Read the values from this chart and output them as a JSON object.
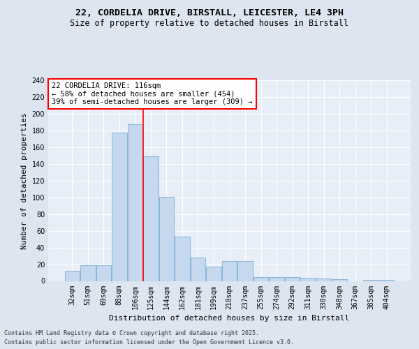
{
  "title_line1": "22, CORDELIA DRIVE, BIRSTALL, LEICESTER, LE4 3PH",
  "title_line2": "Size of property relative to detached houses in Birstall",
  "xlabel": "Distribution of detached houses by size in Birstall",
  "ylabel": "Number of detached properties",
  "categories": [
    "32sqm",
    "51sqm",
    "69sqm",
    "88sqm",
    "106sqm",
    "125sqm",
    "144sqm",
    "162sqm",
    "181sqm",
    "199sqm",
    "218sqm",
    "237sqm",
    "255sqm",
    "274sqm",
    "292sqm",
    "311sqm",
    "330sqm",
    "348sqm",
    "367sqm",
    "385sqm",
    "404sqm"
  ],
  "values": [
    12,
    19,
    19,
    177,
    187,
    149,
    101,
    53,
    28,
    17,
    24,
    24,
    5,
    5,
    5,
    4,
    3,
    2,
    0,
    1,
    1
  ],
  "bar_color": "#c5d8ed",
  "bar_edge_color": "#7aaed4",
  "red_line_x": 5.0,
  "annotation_text": "22 CORDELIA DRIVE: 116sqm\n← 58% of detached houses are smaller (454)\n39% of semi-detached houses are larger (309) →",
  "annotation_box_color": "white",
  "annotation_box_edge": "red",
  "ylim": [
    0,
    240
  ],
  "yticks": [
    0,
    20,
    40,
    60,
    80,
    100,
    120,
    140,
    160,
    180,
    200,
    220,
    240
  ],
  "bg_color": "#dce5f0",
  "plot_bg_color": "#e8eef7",
  "grid_color": "white",
  "footer_line1": "Contains HM Land Registry data © Crown copyright and database right 2025.",
  "footer_line2": "Contains public sector information licensed under the Open Government Licence v3.0.",
  "title_fontsize": 9.5,
  "subtitle_fontsize": 8.5,
  "axis_label_fontsize": 8,
  "tick_fontsize": 7,
  "annotation_fontsize": 7.5,
  "footer_fontsize": 6
}
